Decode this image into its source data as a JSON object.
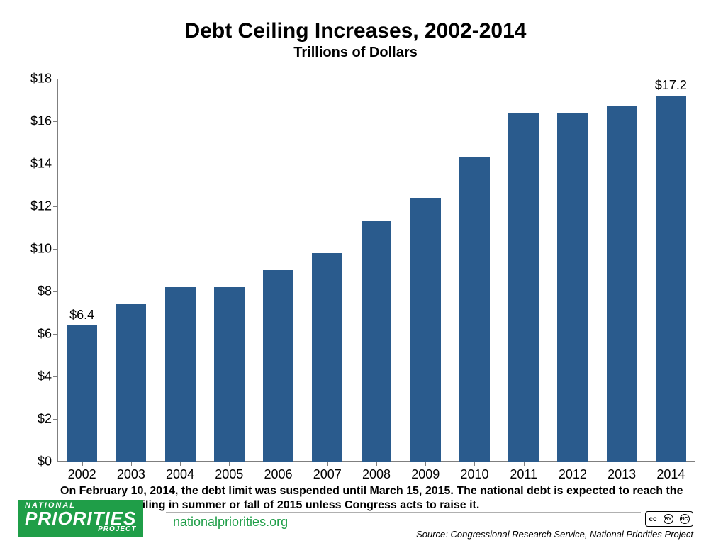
{
  "chart": {
    "type": "bar",
    "title": "Debt Ceiling Increases, 2002-2014",
    "subtitle": "Trillions of Dollars",
    "categories": [
      "2002",
      "2003",
      "2004",
      "2005",
      "2006",
      "2007",
      "2008",
      "2009",
      "2010",
      "2011",
      "2012",
      "2013",
      "2014"
    ],
    "values": [
      6.4,
      7.4,
      8.2,
      8.2,
      9.0,
      9.8,
      11.3,
      12.4,
      14.3,
      16.4,
      16.4,
      16.7,
      17.2
    ],
    "value_labels": {
      "0": "$6.4",
      "12": "$17.2"
    },
    "bar_color": "#2a5b8d",
    "ylim": [
      0,
      18
    ],
    "ytick_step": 2,
    "ytick_prefix": "$",
    "axis_color": "#7f7f7f",
    "background_color": "#ffffff",
    "title_fontsize": 30,
    "subtitle_fontsize": 20,
    "tick_fontsize": 18,
    "bar_width_ratio": 0.62,
    "bar_label_fontsize": 18
  },
  "note": "On February 10, 2014, the debt limit was suspended until March 15, 2015. The national debt is expected to reach the current debt ceiling in summer or fall of 2015 unless Congress acts to raise it.",
  "footer": {
    "logo_line1": "NATIONAL",
    "logo_line2": "PRIORITIES",
    "logo_line3": "PROJECT",
    "logo_bg": "#1f9e48",
    "site": "nationalpriorities.org",
    "site_color": "#1f9e48",
    "source": "Source: Congressional Research Service, National Priorities Project",
    "cc_label": "cc",
    "cc_by": "BY",
    "cc_nc": "NC"
  }
}
